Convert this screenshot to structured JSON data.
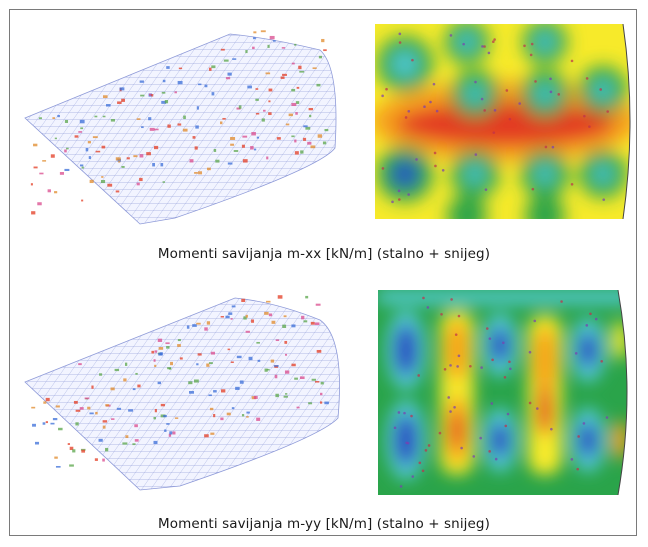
{
  "figure": {
    "captions": [
      "Momenti savijanja m-xx [kN/m] (stalno + snijeg)",
      "Momenti savijanja m-yy [kN/m] (stalno + snijeg)"
    ],
    "colors": {
      "frame_border": "#7a7a7a",
      "mesh_line": "#8e9ad8",
      "contour_red": "#e33b21",
      "contour_orange": "#f6a21f",
      "contour_yellow": "#f7ea2a",
      "contour_green": "#2aa44a",
      "contour_cyan": "#53c9d2",
      "contour_blue": "#2a4fc2"
    }
  }
}
